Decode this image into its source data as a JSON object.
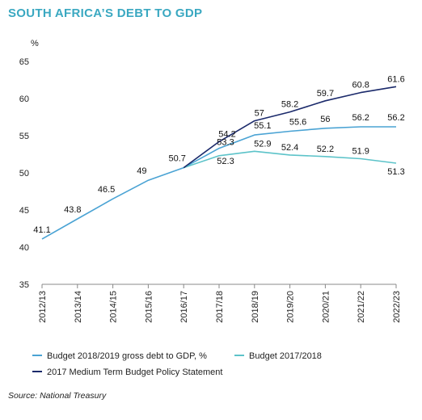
{
  "title": "SOUTH AFRICA’S DEBT TO GDP",
  "source": "Source: National Treasury",
  "chart_data": {
    "type": "line",
    "ylabel": "%",
    "ylim": [
      35,
      65
    ],
    "yticks": [
      35,
      40,
      45,
      50,
      55,
      60,
      65
    ],
    "categories": [
      "2012/13",
      "2013/14",
      "2014/15",
      "2015/16",
      "2016/17",
      "2017/18",
      "2018/19",
      "2019/20",
      "2020/21",
      "2021/22",
      "2022/23"
    ],
    "grid": false,
    "legend_position": "bottom",
    "series": [
      {
        "name": "Budget 2018/2019 gross debt to GDP, %",
        "color": "#4aa3d4",
        "values": [
          41.1,
          43.8,
          46.5,
          49,
          50.7,
          53.3,
          55.1,
          55.6,
          56,
          56.2,
          56.2
        ],
        "labels": [
          "41.1",
          "43.8",
          "46.5",
          "49",
          "50.7",
          "53.3",
          "55.1",
          "55.6",
          "56",
          "56.2",
          "56.2"
        ]
      },
      {
        "name": "Budget 2017/2018",
        "color": "#5cc3c9",
        "values": [
          null,
          null,
          null,
          null,
          50.7,
          52.3,
          52.9,
          52.4,
          52.2,
          51.9,
          51.3
        ],
        "labels": [
          null,
          null,
          null,
          null,
          null,
          "52.3",
          "52.9",
          "52.4",
          "52.2",
          "51.9",
          "51.3"
        ]
      },
      {
        "name": "2017 Medium Term Budget Policy Statement",
        "color": "#1b2a6b",
        "values": [
          null,
          null,
          null,
          null,
          50.7,
          54.2,
          57,
          58.2,
          59.7,
          60.8,
          61.6
        ],
        "labels": [
          null,
          null,
          null,
          null,
          null,
          "54.2",
          "57",
          "58.2",
          "59.7",
          "60.8",
          "61.6"
        ]
      }
    ]
  }
}
